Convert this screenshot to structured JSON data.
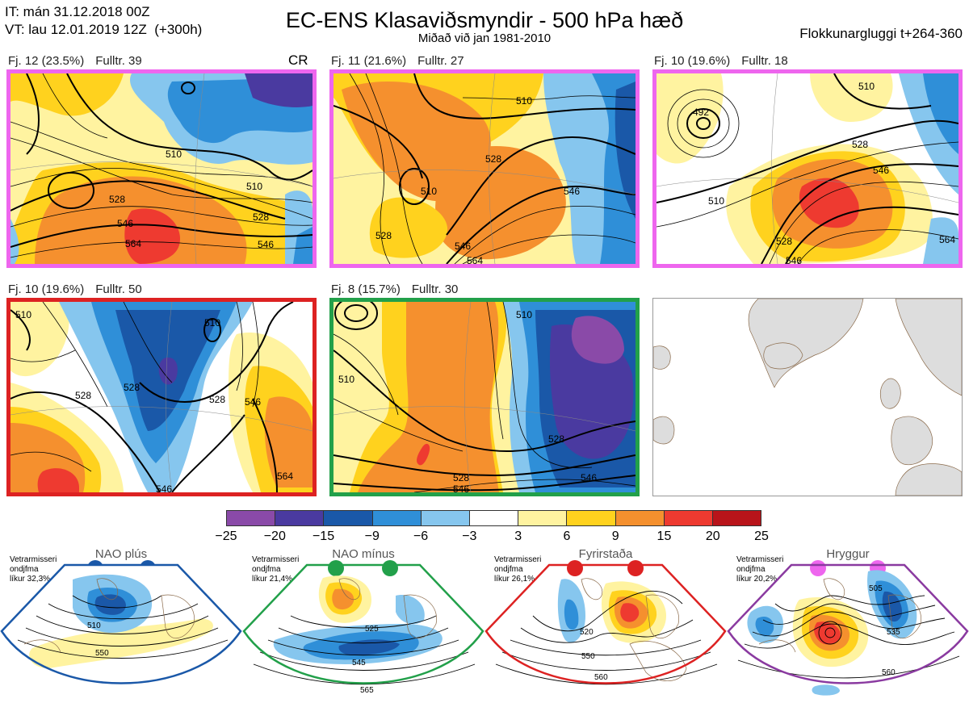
{
  "header": {
    "it_line": "IT: mán 31.12.2018 00Z",
    "vt_line": "VT: lau 12.01.2019 12Z  (+300h)",
    "title": "EC-ENS Klasaviðsmyndir - 500 hPa hæð",
    "subtitle": "Miðað við jan 1981-2010",
    "window": "Flokkunargluggi t+264-360"
  },
  "panels": [
    {
      "id": "p1",
      "label": "Fj. 12 (23.5%)",
      "count": "Fulltr. 39",
      "extra": "CR",
      "frame_color": "#ee66ee",
      "contours": [
        "510",
        "528",
        "546",
        "564",
        "510",
        "528",
        "546"
      ]
    },
    {
      "id": "p2",
      "label": "Fj. 11 (21.6%)",
      "count": "Fulltr. 27",
      "extra": "",
      "frame_color": "#ee66ee",
      "contours": [
        "510",
        "528",
        "546",
        "510",
        "528",
        "546",
        "564"
      ]
    },
    {
      "id": "p3",
      "label": "Fj. 10 (19.6%)",
      "count": "Fulltr. 18",
      "extra": "",
      "frame_color": "#ee66ee",
      "contours": [
        "492",
        "510",
        "528",
        "546",
        "510",
        "528",
        "546",
        "564"
      ]
    },
    {
      "id": "p4",
      "label": "Fj. 10 (19.6%)",
      "count": "Fulltr. 50",
      "extra": "",
      "frame_color": "#dd2222",
      "contours": [
        "510",
        "528",
        "510",
        "528",
        "546",
        "528",
        "546",
        "564"
      ]
    },
    {
      "id": "p5",
      "label": "Fj. 8 (15.7%)",
      "count": "Fulltr. 30",
      "extra": "",
      "frame_color": "#22a04a",
      "contours": [
        "510",
        "510",
        "528",
        "546",
        "528",
        "546"
      ]
    }
  ],
  "colorbar": {
    "ticks": [
      "−25",
      "−20",
      "−15",
      "−9",
      "−6",
      "−3",
      "3",
      "6",
      "9",
      "15",
      "20",
      "25"
    ],
    "colors": [
      "#8a4aa8",
      "#4a3aa0",
      "#1a58a8",
      "#2f8fd8",
      "#86c6ee",
      "#ffffff",
      "#fff3a0",
      "#ffd21e",
      "#f5902e",
      "#ee3a30",
      "#b8141a"
    ]
  },
  "regimes": [
    {
      "name": "NAO plús",
      "stat": "Vetrarmisseri\nondjfma\nlíkur 32,3%",
      "color": "#1a58a8",
      "contours": [
        "510",
        "550"
      ]
    },
    {
      "name": "NAO mínus",
      "stat": "Vetrarmisseri\nondjfma\nlíkur 21,4%",
      "color": "#22a04a",
      "contours": [
        "525",
        "545",
        "565"
      ]
    },
    {
      "name": "Fyrirstaða",
      "stat": "Vetrarmisseri\nondjfma\nlíkur 26,1%",
      "color": "#dd2222",
      "contours": [
        "520",
        "550",
        "560"
      ]
    },
    {
      "name": "Hryggur",
      "stat": "Vetrarmisseri\nondjfma\nlíkur 20,2%",
      "color": "#ee66ee",
      "contours": [
        "505",
        "535",
        "560"
      ]
    }
  ]
}
